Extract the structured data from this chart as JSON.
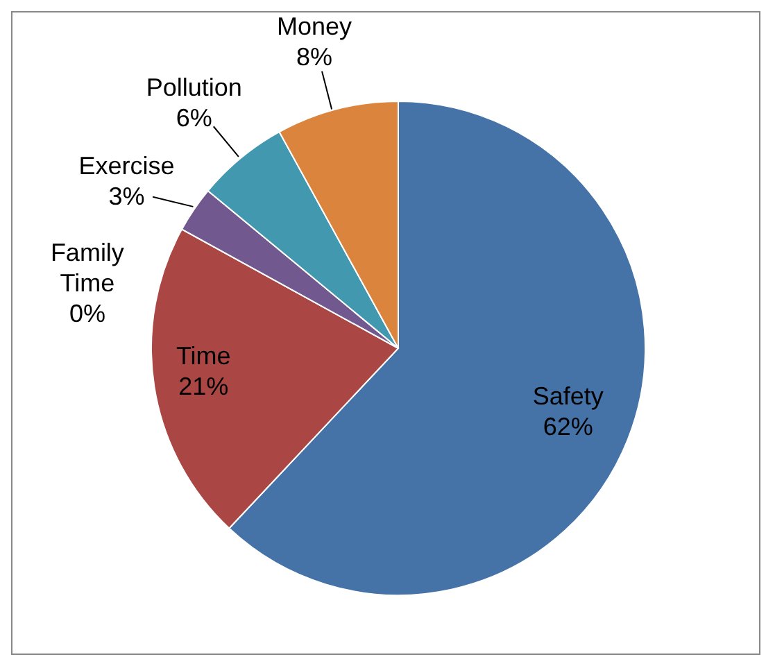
{
  "chart_data": {
    "type": "pie",
    "categories": [
      "Safety",
      "Time",
      "Family Time",
      "Exercise",
      "Pollution",
      "Money"
    ],
    "values": [
      62,
      21,
      0,
      3,
      6,
      8
    ],
    "value_labels": [
      "62%",
      "21%",
      "0%",
      "3%",
      "6%",
      "8%"
    ],
    "colors": [
      "#4572a7",
      "#aa4643",
      "#89a54e",
      "#71588f",
      "#4198af",
      "#db843d"
    ],
    "legend": false
  }
}
